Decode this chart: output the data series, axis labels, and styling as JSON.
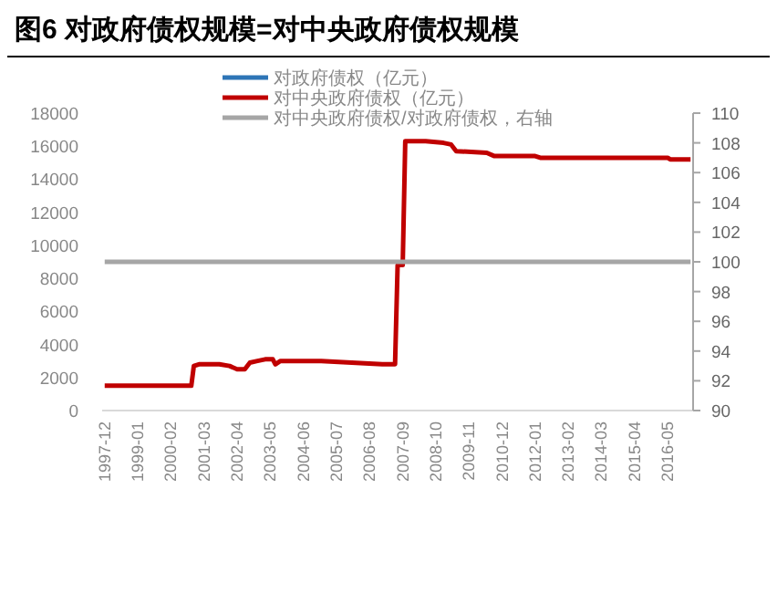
{
  "chart_data": {
    "type": "line",
    "title": "图6  对政府债权规模=对中央政府债权规模",
    "xlim": [
      "1997-11",
      "2017-03"
    ],
    "xticks": [
      "1997-12",
      "1999-01",
      "2000-02",
      "2001-03",
      "2002-04",
      "2003-05",
      "2004-06",
      "2005-07",
      "2006-08",
      "2007-09",
      "2008-10",
      "2009-11",
      "2010-12",
      "2012-01",
      "2013-02",
      "2014-03",
      "2015-04",
      "2016-05"
    ],
    "ylim": [
      0,
      18000
    ],
    "yticks": [
      0,
      2000,
      4000,
      6000,
      8000,
      10000,
      12000,
      14000,
      16000,
      18000
    ],
    "y2lim": [
      90,
      110
    ],
    "y2ticks": [
      90,
      92,
      94,
      96,
      98,
      100,
      102,
      104,
      106,
      108,
      110
    ],
    "legend": "top",
    "grid": false,
    "series": [
      {
        "name": "对政府债权（亿元）",
        "color": "#2e75b6"
      },
      {
        "name": "对中央政府债权（亿元）",
        "color": "#c00000",
        "x": [
          "1997-12",
          "2000-10",
          "2000-11",
          "2001-01",
          "2001-09",
          "2002-01",
          "2002-04",
          "2002-07",
          "2002-09",
          "2002-12",
          "2003-03",
          "2003-06",
          "2003-07",
          "2003-09",
          "2005-01",
          "2006-01",
          "2007-01",
          "2007-06",
          "2007-07",
          "2007-09",
          "2007-10",
          "2008-06",
          "2009-01",
          "2009-04",
          "2009-06",
          "2010-06",
          "2010-09",
          "2012-01",
          "2012-03",
          "2016-05",
          "2016-06",
          "2017-02"
        ],
        "values": [
          1500,
          1500,
          2700,
          2800,
          2800,
          2700,
          2500,
          2500,
          2900,
          3000,
          3100,
          3100,
          2800,
          3000,
          3000,
          2900,
          2800,
          2800,
          8800,
          8800,
          16300,
          16300,
          16200,
          16100,
          15700,
          15600,
          15400,
          15400,
          15300,
          15300,
          15200,
          15200
        ]
      },
      {
        "name": "对中央政府债权/对政府债权，右轴",
        "color": "#a6a6a6",
        "axis": "y2",
        "x": [
          "1997-12",
          "2017-02"
        ],
        "values": [
          100,
          100
        ]
      }
    ]
  }
}
